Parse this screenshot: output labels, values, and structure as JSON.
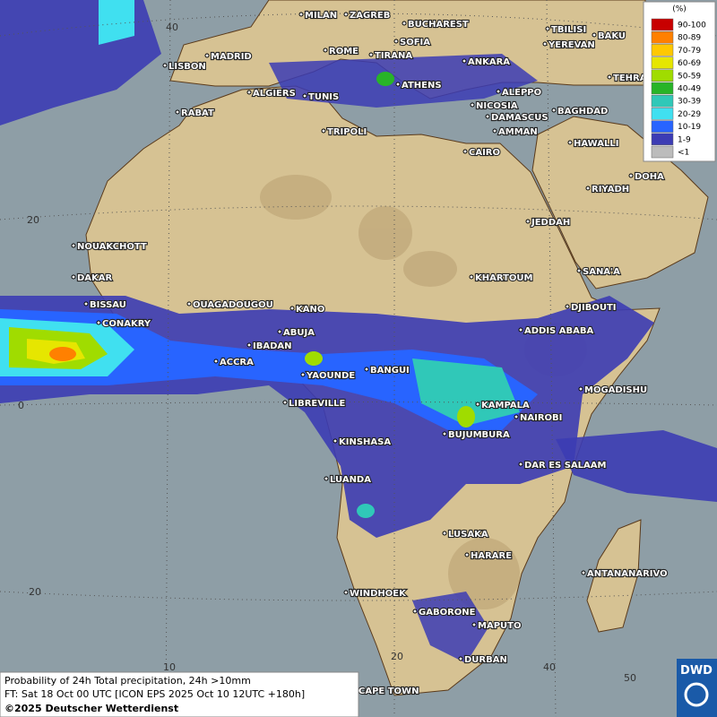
{
  "map": {
    "cities": [
      {
        "label": "MILAN"
      },
      {
        "label": "ZAGREB"
      },
      {
        "label": "BUCHAREST"
      },
      {
        "label": "TBILISI"
      },
      {
        "label": "BAKU"
      },
      {
        "label": "SOFIA"
      },
      {
        "label": "YEREVAN"
      },
      {
        "label": "ROME"
      },
      {
        "label": "MADRID"
      },
      {
        "label": "TIRANA"
      },
      {
        "label": "ANKARA"
      },
      {
        "label": "LISBON"
      },
      {
        "label": "TEHRAN"
      },
      {
        "label": "ATHENS"
      },
      {
        "label": "ALGIERS"
      },
      {
        "label": "TUNIS"
      },
      {
        "label": "ALEPPO"
      },
      {
        "label": "NICOSIA"
      },
      {
        "label": "RABAT"
      },
      {
        "label": "BAGHDAD"
      },
      {
        "label": "DAMASCUS"
      },
      {
        "label": "TRIPOLI"
      },
      {
        "label": "AMMAN"
      },
      {
        "label": "HAWALLI"
      },
      {
        "label": "CAIRO"
      },
      {
        "label": "DOHA"
      },
      {
        "label": "RIYADH"
      },
      {
        "label": "JEDDAH"
      },
      {
        "label": "NOUAKCHOTT"
      },
      {
        "label": "SANA'A"
      },
      {
        "label": "DAKAR"
      },
      {
        "label": "KHARTOUM"
      },
      {
        "label": "BISSAU"
      },
      {
        "label": "OUAGADOUGOU"
      },
      {
        "label": "KANO"
      },
      {
        "label": "DJIBOUTI"
      },
      {
        "label": "CONAKRY"
      },
      {
        "label": "ABUJA"
      },
      {
        "label": "ADDIS ABABA"
      },
      {
        "label": "IBADAN"
      },
      {
        "label": "ACCRA"
      },
      {
        "label": "BANGUI"
      },
      {
        "label": "YAOUNDE"
      },
      {
        "label": "MOGADISHU"
      },
      {
        "label": "LIBREVILLE"
      },
      {
        "label": "KAMPALA"
      },
      {
        "label": "NAIROBI"
      },
      {
        "label": "BUJUMBURA"
      },
      {
        "label": "KINSHASA"
      },
      {
        "label": "DAR ES SALAAM"
      },
      {
        "label": "LUANDA"
      },
      {
        "label": "LUSAKA"
      },
      {
        "label": "HARARE"
      },
      {
        "label": "ANTANANARIVO"
      },
      {
        "label": "WINDHOEK"
      },
      {
        "label": "GABORONE"
      },
      {
        "label": "MAPUTO"
      },
      {
        "label": "DURBAN"
      },
      {
        "label": "CAPE TOWN"
      }
    ],
    "graticule_labels": [
      "40",
      "20",
      "0",
      "20",
      "10",
      "20",
      "40",
      "50"
    ]
  },
  "legend": {
    "title": "(%)",
    "entries": [
      {
        "label": "90-100",
        "color": "#c80000"
      },
      {
        "label": "80-89",
        "color": "#ff8000"
      },
      {
        "label": "70-79",
        "color": "#ffc800"
      },
      {
        "label": "60-69",
        "color": "#e6e600"
      },
      {
        "label": "50-59",
        "color": "#a0dc00"
      },
      {
        "label": "40-49",
        "color": "#28b428"
      },
      {
        "label": "30-39",
        "color": "#30c8b8"
      },
      {
        "label": "20-29",
        "color": "#40e0f0"
      },
      {
        "label": "10-19",
        "color": "#2864ff"
      },
      {
        "label": "1-9",
        "color": "#3c3cb4"
      },
      {
        "label": "<1",
        "color": "#bcbcbc"
      }
    ]
  },
  "footer": {
    "lines": [
      "Probability of 24h Total precipitation, 24h >10mm",
      "FT: Sat 18 Oct 00 UTC [ICON EPS 2025 Oct 10 12UTC +180h]",
      "©2025 Deutscher Wetterdienst"
    ]
  },
  "logo": {
    "text": "DWD"
  }
}
